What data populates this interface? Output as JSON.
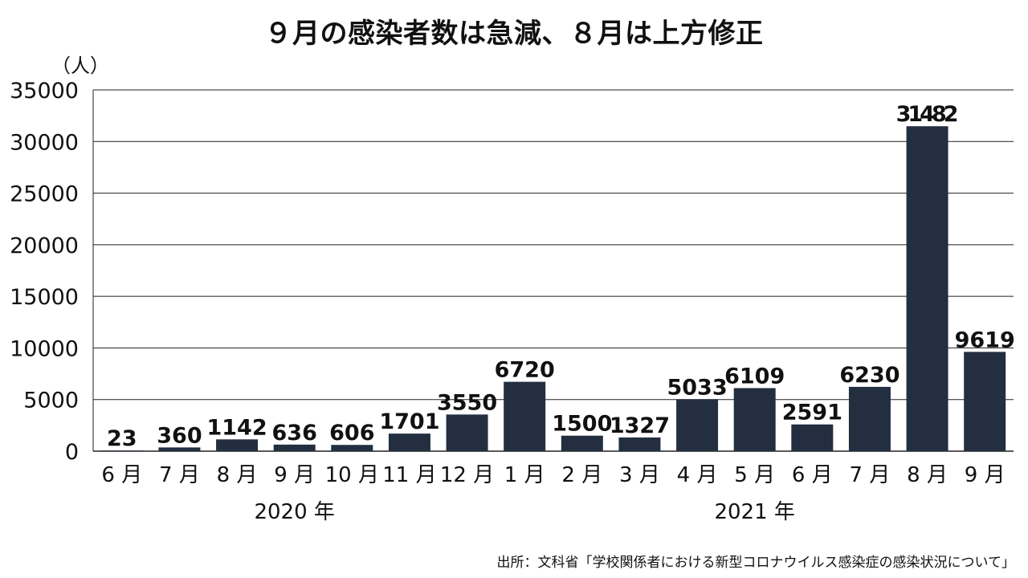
{
  "chart_data": {
    "type": "bar",
    "title": "９月の感染者数は急減、８月は上方修正",
    "ylabel": "（人）",
    "ylim": [
      0,
      35000
    ],
    "yticks": [
      "0",
      "5000",
      "10000",
      "15000",
      "20000",
      "25000",
      "30000",
      "35000"
    ],
    "categories": [
      "6 月",
      "7 月",
      "8 月",
      "9 月",
      "10 月",
      "11 月",
      "12 月",
      "1 月",
      "2 月",
      "3 月",
      "4 月",
      "5 月",
      "6 月",
      "7 月",
      "8 月",
      "9 月"
    ],
    "values": [
      23,
      360,
      1142,
      636,
      606,
      1701,
      3550,
      6720,
      1500,
      1327,
      5033,
      6109,
      2591,
      6230,
      31482,
      9619
    ],
    "value_labels": [
      "23",
      "360",
      "1142",
      "636",
      "606",
      "1701",
      "3550",
      "6720",
      "1500",
      "1327",
      "5033",
      "6109",
      "2591",
      "6230",
      "31482",
      "9619"
    ],
    "year_groups": [
      {
        "label": "2020 年",
        "from": 0,
        "to": 6
      },
      {
        "label": "2021 年",
        "from": 7,
        "to": 15
      }
    ],
    "grid": true,
    "bar_color": "#232f40",
    "source": "出所：文科省「学校関係者における新型コロナウイルス感染症の感染状況について」"
  }
}
